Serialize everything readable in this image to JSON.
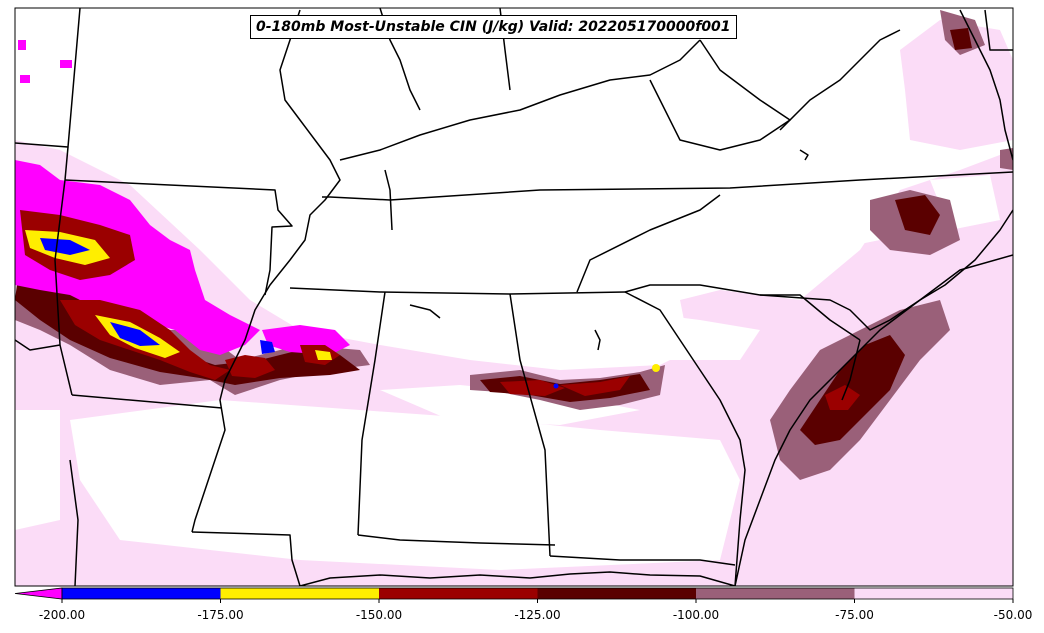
{
  "title": "0-180mb Most-Unstable CIN (J/kg) Valid: 202205170000f001",
  "colorbar": {
    "ticks": [
      "-200.00",
      "-175.00",
      "-150.00",
      "-125.00",
      "-100.00",
      "-75.00",
      "-50.00"
    ],
    "bins": [
      {
        "min": -225,
        "max": -200,
        "color": "#ff00ff"
      },
      {
        "min": -200,
        "max": -175,
        "color": "#0000ff"
      },
      {
        "min": -175,
        "max": -150,
        "color": "#ffee00"
      },
      {
        "min": -150,
        "max": -125,
        "color": "#9b0000"
      },
      {
        "min": -125,
        "max": -100,
        "color": "#5a0000"
      },
      {
        "min": -100,
        "max": -75,
        "color": "#9a6079"
      },
      {
        "min": -75,
        "max": -50,
        "color": "#fbdcf7"
      }
    ],
    "extend": "min"
  }
}
